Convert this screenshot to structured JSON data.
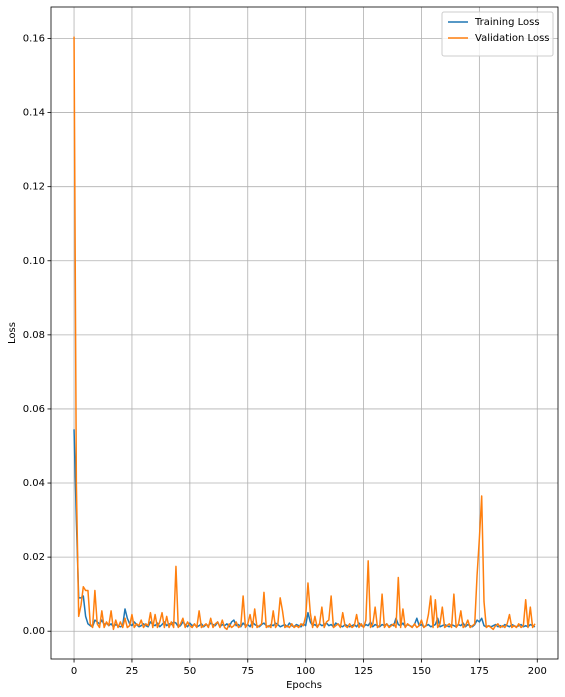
{
  "chart_data": {
    "type": "line",
    "xlabel": "Epochs",
    "ylabel": "Loss",
    "x": [
      0,
      1,
      2,
      3,
      4,
      5,
      6,
      7,
      8,
      9,
      10,
      11,
      12,
      13,
      14,
      15,
      16,
      17,
      18,
      19,
      20,
      21,
      22,
      23,
      24,
      25,
      26,
      27,
      28,
      29,
      30,
      31,
      32,
      33,
      34,
      35,
      36,
      37,
      38,
      39,
      40,
      41,
      42,
      43,
      44,
      45,
      46,
      47,
      48,
      49,
      50,
      51,
      52,
      53,
      54,
      55,
      56,
      57,
      58,
      59,
      60,
      61,
      62,
      63,
      64,
      65,
      66,
      67,
      68,
      69,
      70,
      71,
      72,
      73,
      74,
      75,
      76,
      77,
      78,
      79,
      80,
      81,
      82,
      83,
      84,
      85,
      86,
      87,
      88,
      89,
      90,
      91,
      92,
      93,
      94,
      95,
      96,
      97,
      98,
      99,
      100,
      101,
      102,
      103,
      104,
      105,
      106,
      107,
      108,
      109,
      110,
      111,
      112,
      113,
      114,
      115,
      116,
      117,
      118,
      119,
      120,
      121,
      122,
      123,
      124,
      125,
      126,
      127,
      128,
      129,
      130,
      131,
      132,
      133,
      134,
      135,
      136,
      137,
      138,
      139,
      140,
      141,
      142,
      143,
      144,
      145,
      146,
      147,
      148,
      149,
      150,
      151,
      152,
      153,
      154,
      155,
      156,
      157,
      158,
      159,
      160,
      161,
      162,
      163,
      164,
      165,
      166,
      167,
      168,
      169,
      170,
      171,
      172,
      173,
      174,
      175,
      176,
      177,
      178,
      179,
      180,
      181,
      182,
      183,
      184,
      185,
      186,
      187,
      188,
      189,
      190,
      191,
      192,
      193,
      194,
      195,
      196,
      197,
      198,
      199
    ],
    "series": [
      {
        "name": "Training Loss",
        "color": "#1f77b4",
        "values": [
          0.0545,
          0.03,
          0.009,
          0.009,
          0.0095,
          0.004,
          0.002,
          0.0015,
          0.0012,
          0.003,
          0.0025,
          0.002,
          0.003,
          0.0018,
          0.0022,
          0.0015,
          0.002,
          0.0012,
          0.0018,
          0.0015,
          0.0012,
          0.0015,
          0.006,
          0.0035,
          0.002,
          0.0015,
          0.0025,
          0.0018,
          0.0012,
          0.0015,
          0.002,
          0.0015,
          0.0012,
          0.0025,
          0.0018,
          0.0015,
          0.0022,
          0.0012,
          0.0018,
          0.0025,
          0.0015,
          0.002,
          0.0018,
          0.0025,
          0.0022,
          0.0012,
          0.0015,
          0.0025,
          0.0018,
          0.0012,
          0.0022,
          0.0015,
          0.0018,
          0.0012,
          0.0015,
          0.002,
          0.0012,
          0.0018,
          0.0015,
          0.0022,
          0.0018,
          0.0015,
          0.0025,
          0.0012,
          0.0018,
          0.0015,
          0.002,
          0.0012,
          0.0025,
          0.003,
          0.0015,
          0.0018,
          0.0012,
          0.0022,
          0.0015,
          0.0018,
          0.0012,
          0.0025,
          0.0018,
          0.0015,
          0.0012,
          0.0018,
          0.0022,
          0.0015,
          0.0012,
          0.0018,
          0.0015,
          0.0022,
          0.0018,
          0.0012,
          0.0015,
          0.0018,
          0.0012,
          0.0022,
          0.0015,
          0.0012,
          0.0018,
          0.0015,
          0.0012,
          0.002,
          0.0015,
          0.005,
          0.0025,
          0.0015,
          0.0018,
          0.0012,
          0.002,
          0.0015,
          0.0018,
          0.0022,
          0.0015,
          0.0018,
          0.0012,
          0.0022,
          0.0018,
          0.0015,
          0.0012,
          0.0018,
          0.0015,
          0.0012,
          0.0015,
          0.0018,
          0.0012,
          0.0022,
          0.0015,
          0.0012,
          0.0018,
          0.0015,
          0.0025,
          0.0012,
          0.0018,
          0.0015,
          0.0012,
          0.0018,
          0.0015,
          0.002,
          0.0012,
          0.0018,
          0.0015,
          0.0035,
          0.0018,
          0.0015,
          0.0022,
          0.0012,
          0.0018,
          0.0015,
          0.0012,
          0.0018,
          0.0035,
          0.0015,
          0.0018,
          0.0012,
          0.0015,
          0.0018,
          0.0012,
          0.0015,
          0.0018,
          0.0035,
          0.0012,
          0.0015,
          0.0018,
          0.0015,
          0.0012,
          0.0018,
          0.0015,
          0.0012,
          0.0018,
          0.0015,
          0.0022,
          0.0012,
          0.0018,
          0.0015,
          0.0012,
          0.0018,
          0.003,
          0.0025,
          0.0035,
          0.0015,
          0.0012,
          0.0015,
          0.0012,
          0.0015,
          0.0018,
          0.0012,
          0.0015,
          0.0012,
          0.0018,
          0.0015,
          0.0012,
          0.0018,
          0.0015,
          0.0012,
          0.0015,
          0.0018,
          0.0012,
          0.0015,
          0.0012,
          0.0018,
          0.0015,
          0.0012
        ]
      },
      {
        "name": "Validation Loss",
        "color": "#ff7f0e",
        "values": [
          0.1605,
          0.04,
          0.004,
          0.007,
          0.012,
          0.011,
          0.011,
          0.002,
          0.001,
          0.011,
          0.002,
          0.001,
          0.0055,
          0.001,
          0.0025,
          0.0015,
          0.0055,
          0.0005,
          0.003,
          0.001,
          0.0025,
          0.001,
          0.0035,
          0.001,
          0.0015,
          0.0045,
          0.001,
          0.002,
          0.0015,
          0.003,
          0.001,
          0.002,
          0.0015,
          0.005,
          0.001,
          0.0045,
          0.001,
          0.0025,
          0.005,
          0.001,
          0.004,
          0.001,
          0.0025,
          0.001,
          0.0175,
          0.001,
          0.002,
          0.0035,
          0.001,
          0.0025,
          0.0015,
          0.001,
          0.002,
          0.001,
          0.0055,
          0.001,
          0.0015,
          0.002,
          0.001,
          0.0035,
          0.001,
          0.002,
          0.0025,
          0.001,
          0.003,
          0.001,
          0.0005,
          0.002,
          0.001,
          0.0015,
          0.0025,
          0.001,
          0.0015,
          0.0095,
          0.001,
          0.002,
          0.0045,
          0.001,
          0.006,
          0.001,
          0.0015,
          0.002,
          0.0105,
          0.001,
          0.0015,
          0.001,
          0.0055,
          0.001,
          0.002,
          0.009,
          0.0055,
          0.001,
          0.0015,
          0.001,
          0.002,
          0.001,
          0.0015,
          0.001,
          0.002,
          0.0015,
          0.004,
          0.013,
          0.005,
          0.001,
          0.004,
          0.001,
          0.002,
          0.0065,
          0.001,
          0.0025,
          0.003,
          0.0095,
          0.001,
          0.0015,
          0.002,
          0.001,
          0.005,
          0.0015,
          0.001,
          0.002,
          0.001,
          0.0015,
          0.0045,
          0.001,
          0.002,
          0.001,
          0.003,
          0.019,
          0.001,
          0.002,
          0.0065,
          0.001,
          0.0015,
          0.01,
          0.001,
          0.002,
          0.001,
          0.0015,
          0.002,
          0.001,
          0.0145,
          0.001,
          0.006,
          0.001,
          0.002,
          0.0015,
          0.001,
          0.002,
          0.001,
          0.0015,
          0.003,
          0.001,
          0.0015,
          0.0045,
          0.0095,
          0.001,
          0.0085,
          0.001,
          0.002,
          0.0065,
          0.001,
          0.0015,
          0.002,
          0.001,
          0.01,
          0.001,
          0.002,
          0.0055,
          0.001,
          0.0015,
          0.003,
          0.001,
          0.0015,
          0.002,
          0.015,
          0.025,
          0.0365,
          0.008,
          0.001,
          0.0015,
          0.001,
          0.0005,
          0.0015,
          0.002,
          0.001,
          0.0015,
          0.001,
          0.002,
          0.0045,
          0.001,
          0.0015,
          0.001,
          0.002,
          0.001,
          0.0015,
          0.0085,
          0.001,
          0.0065,
          0.001,
          0.002
        ]
      }
    ],
    "xlim": [
      -9.95,
      208.95
    ],
    "xticks": [
      0,
      25,
      50,
      75,
      100,
      125,
      150,
      175,
      200
    ],
    "ylim": [
      -0.0075,
      0.1685
    ],
    "yticks": [
      {
        "value": 0,
        "label": "0.00"
      },
      {
        "value": 0.02,
        "label": "0.02"
      },
      {
        "value": 0.04,
        "label": "0.04"
      },
      {
        "value": 0.06,
        "label": "0.06"
      },
      {
        "value": 0.08,
        "label": "0.08"
      },
      {
        "value": 0.1,
        "label": "0.10"
      },
      {
        "value": 0.12,
        "label": "0.12"
      },
      {
        "value": 0.14,
        "label": "0.14"
      },
      {
        "value": 0.16,
        "label": "0.16"
      }
    ],
    "grid": true,
    "legend": "upper right"
  }
}
